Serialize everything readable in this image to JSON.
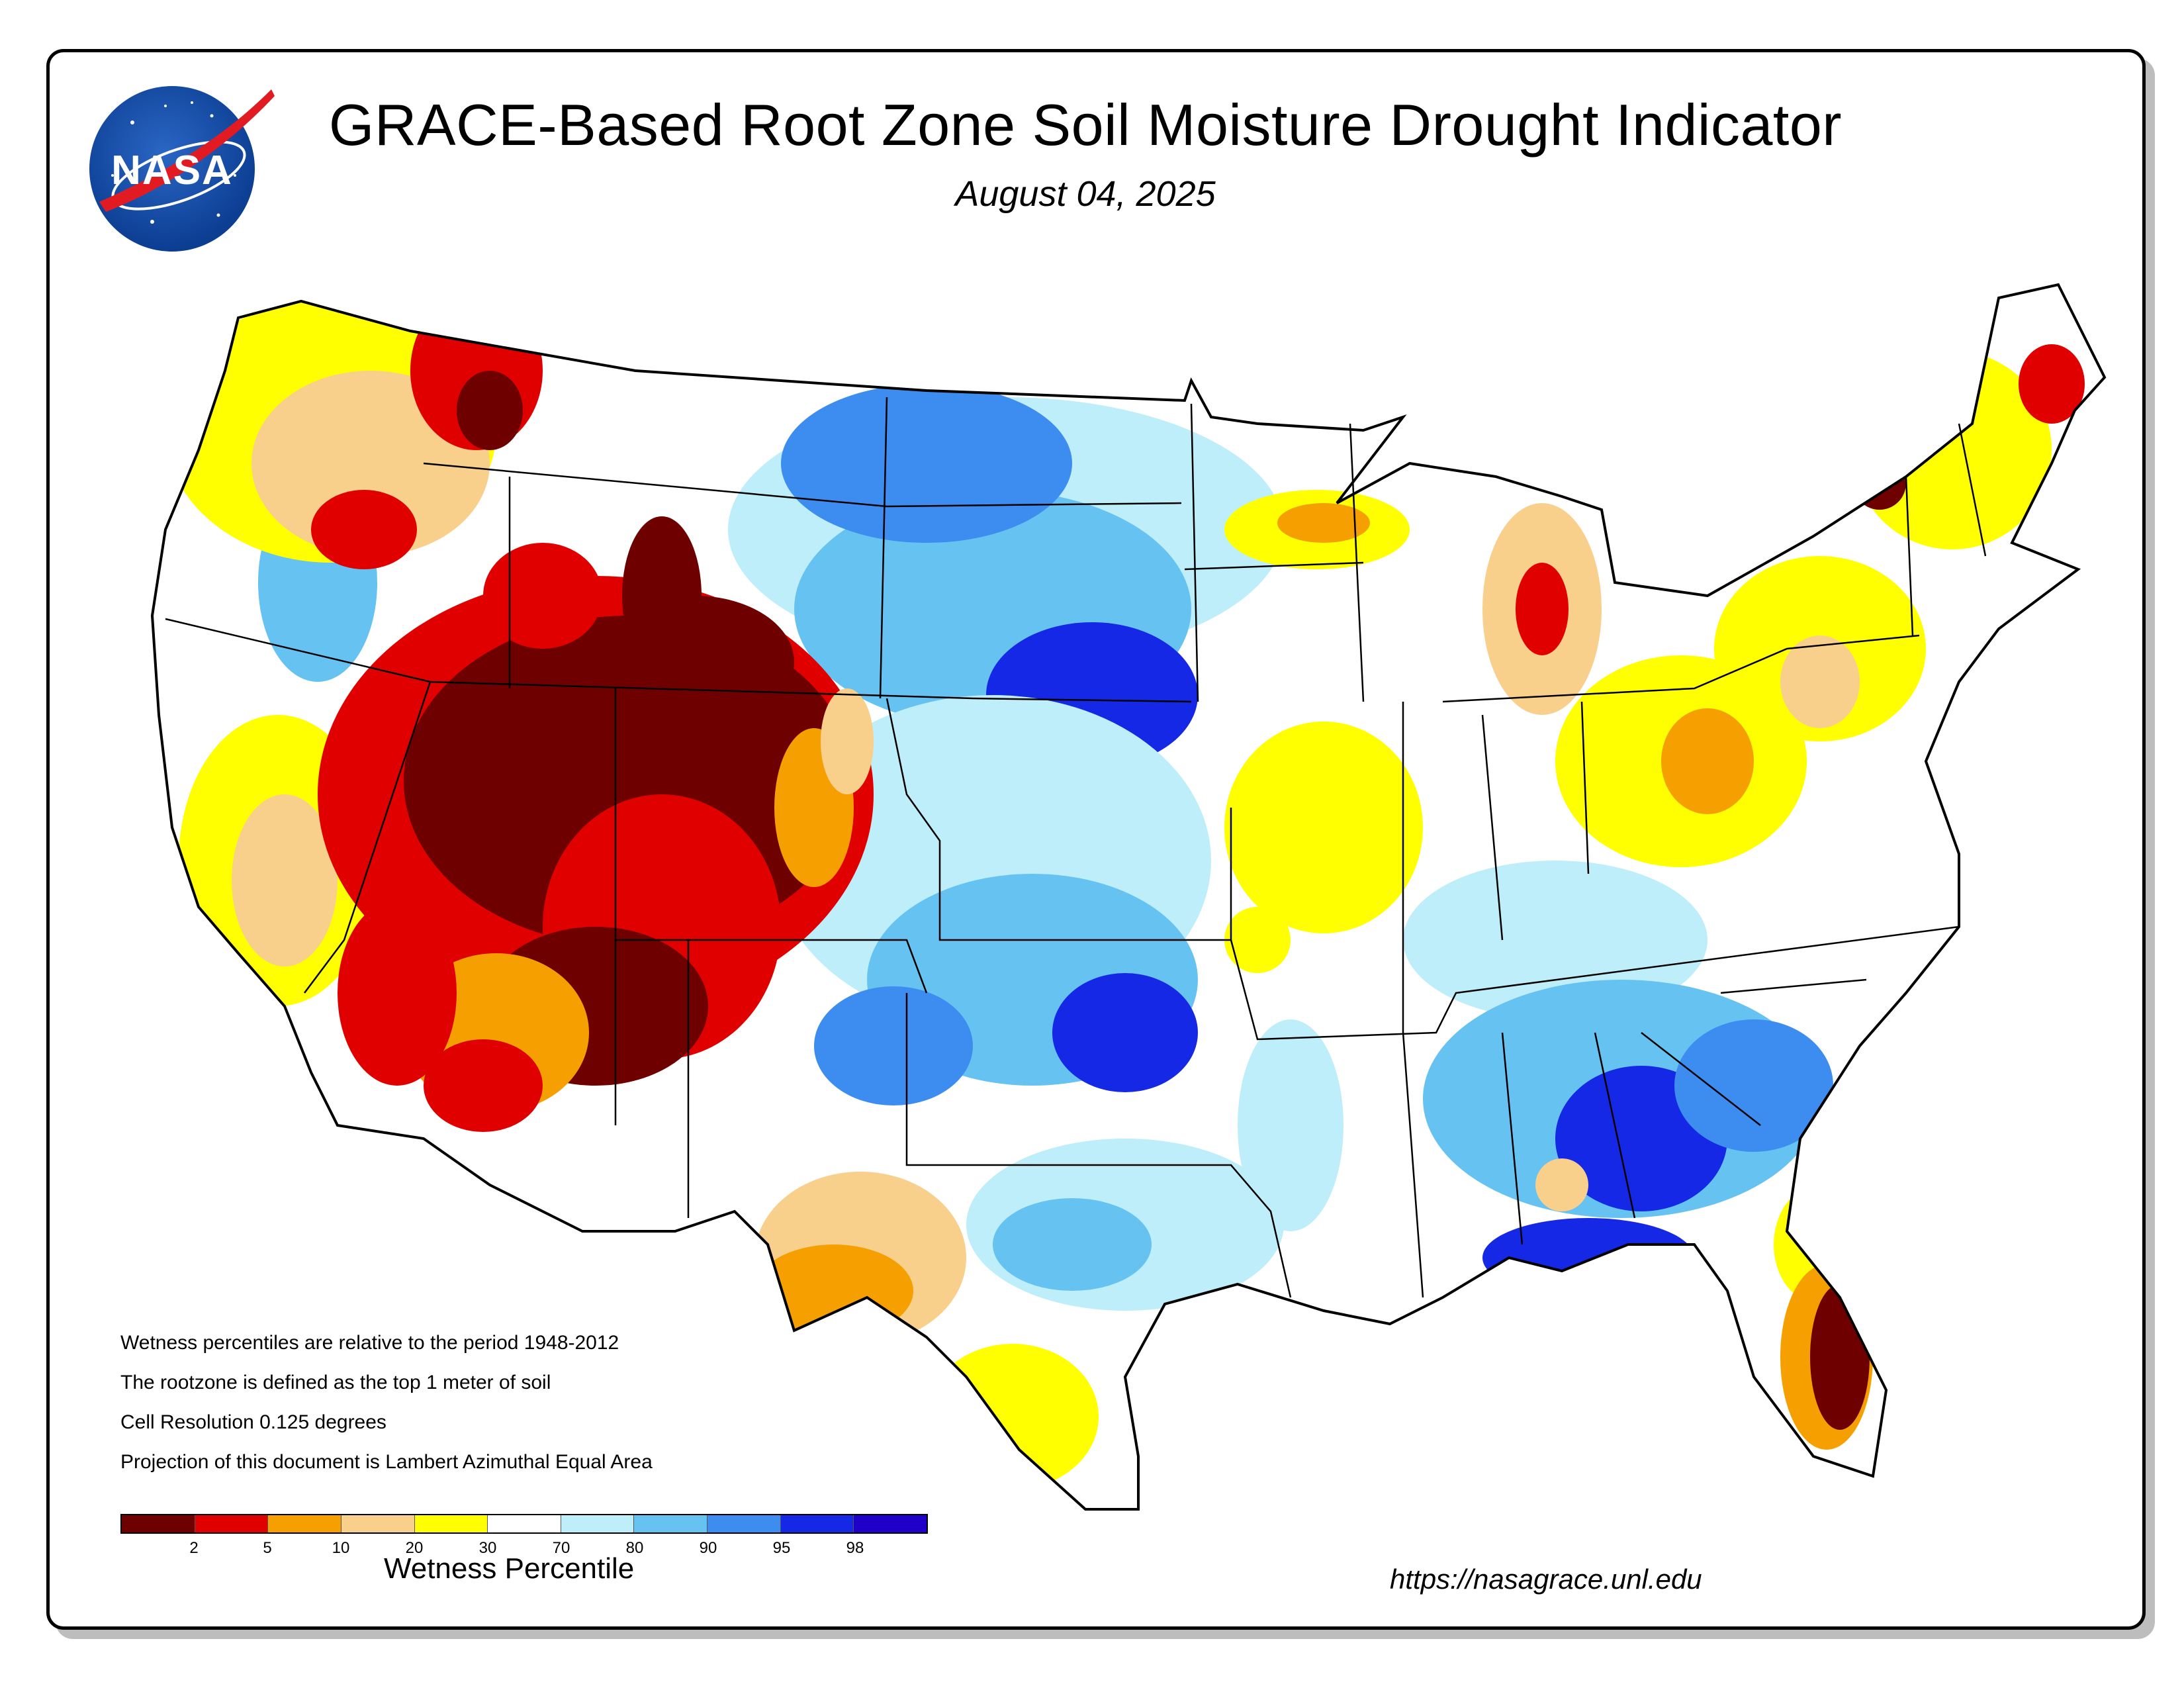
{
  "title": "GRACE-Based Root Zone Soil  Moisture Drought Indicator",
  "date": "August 04, 2025",
  "logo": {
    "text": "NASA",
    "icon": "nasa-meatball-logo"
  },
  "notes": [
    "Wetness percentiles are relative to the period 1948-2012",
    "The rootzone is defined as the top 1 meter of soil",
    "Cell Resolution 0.125 degrees",
    "Projection of this document is Lambert Azimuthal Equal Area"
  ],
  "legend": {
    "title": "Wetness Percentile",
    "ticks": [
      "2",
      "5",
      "10",
      "20",
      "30",
      "70",
      "80",
      "90",
      "95",
      "98"
    ],
    "colors": [
      "#6e0000",
      "#e00000",
      "#f5a000",
      "#f9cf8c",
      "#ffff00",
      "#ffffff",
      "#bdeef9",
      "#66c2f0",
      "#3d8cf0",
      "#1428e6",
      "#1e00c8"
    ]
  },
  "url": "https://nasagrace.unl.edu",
  "map": {
    "region": "Contiguous United States",
    "regions": [
      {
        "name": "great-basin-southwest",
        "category": "2"
      },
      {
        "name": "four-corners-colorado",
        "category": "2"
      },
      {
        "name": "pacific-northwest",
        "category": "10"
      },
      {
        "name": "northern-great-plains",
        "category": "95"
      },
      {
        "name": "central-plains",
        "category": "90"
      },
      {
        "name": "southern-plains-oklahoma",
        "category": "90"
      },
      {
        "name": "central-texas",
        "category": "80"
      },
      {
        "name": "south-texas",
        "category": "20"
      },
      {
        "name": "tennessee-valley",
        "category": "80"
      },
      {
        "name": "georgia-florida-panhandle",
        "category": "95"
      },
      {
        "name": "south-florida",
        "category": "5"
      },
      {
        "name": "ohio-valley",
        "category": "20"
      },
      {
        "name": "upper-michigan",
        "category": "20"
      },
      {
        "name": "lower-michigan",
        "category": "10"
      },
      {
        "name": "northeast",
        "category": "30"
      },
      {
        "name": "maine-coast",
        "category": "5"
      }
    ]
  }
}
